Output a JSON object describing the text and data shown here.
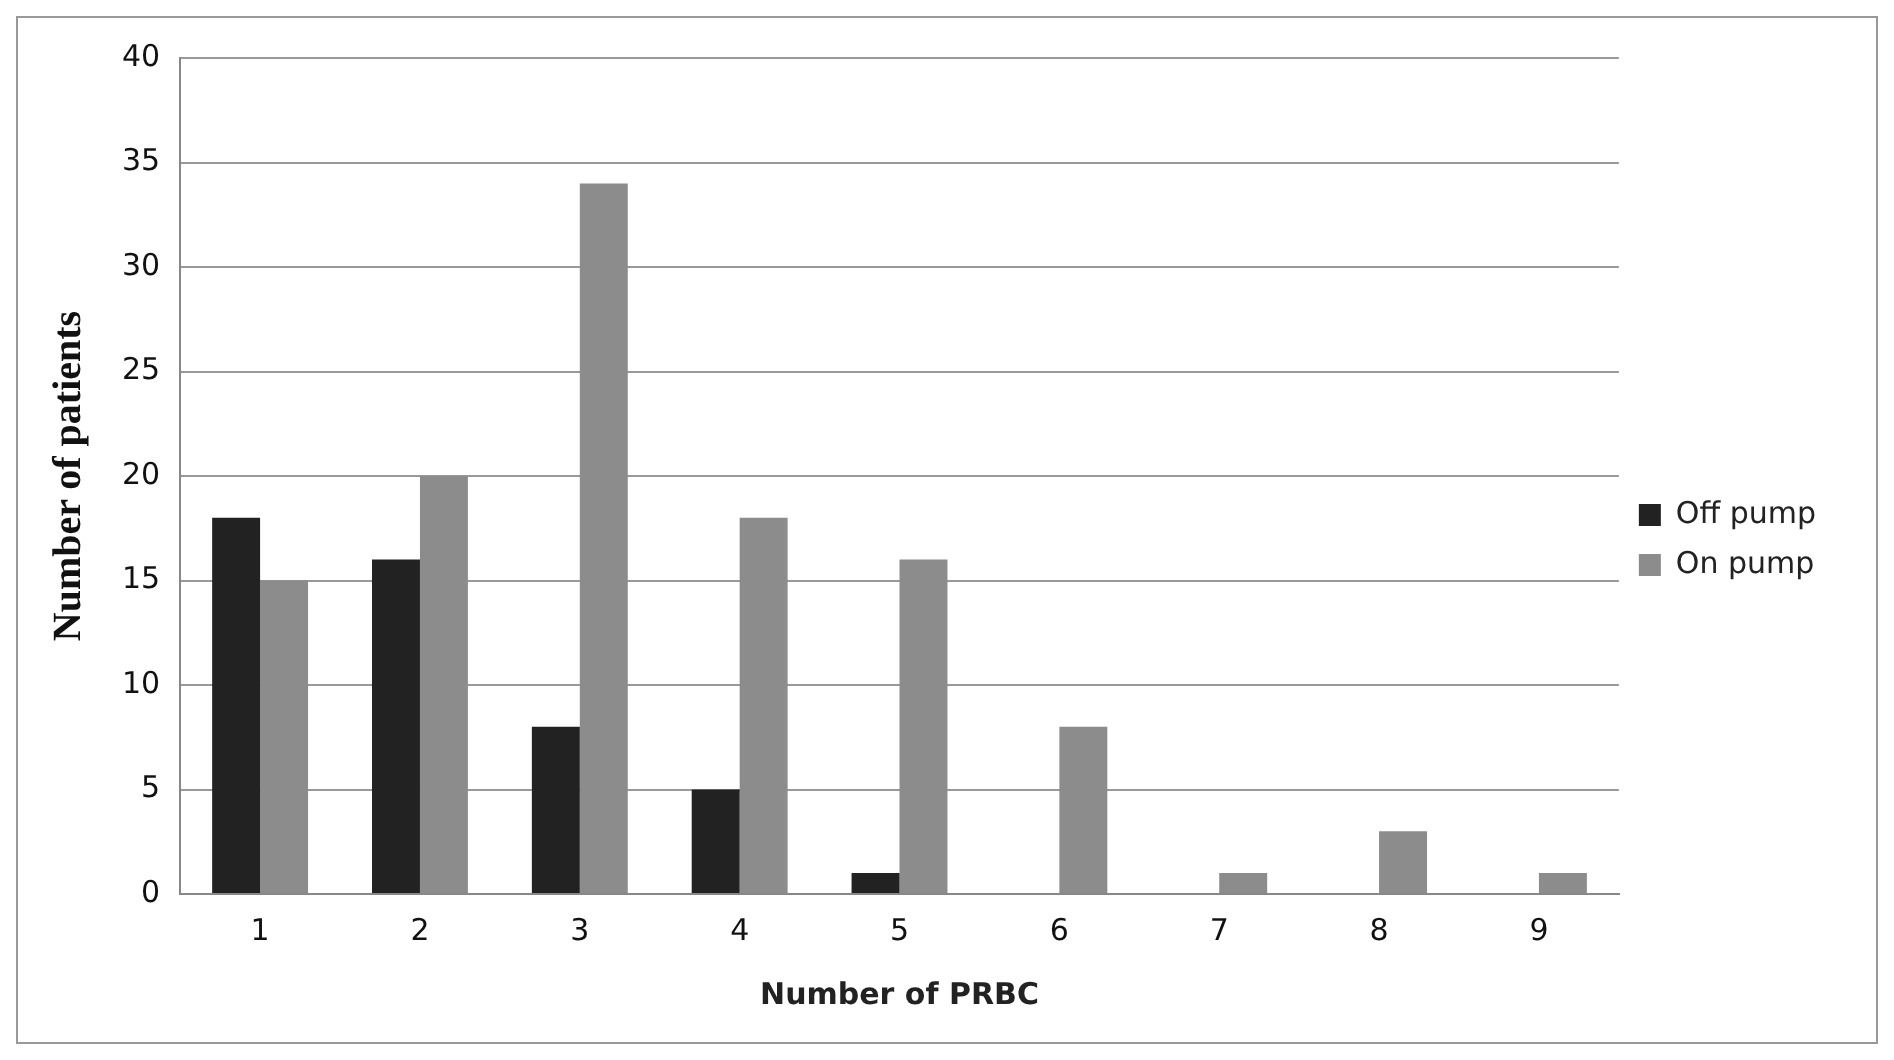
{
  "chart_data": {
    "type": "bar",
    "xlabel": "Number of PRBC",
    "ylabel": "Number of patients",
    "categories": [
      "1",
      "2",
      "3",
      "4",
      "5",
      "6",
      "7",
      "8",
      "9"
    ],
    "series": [
      {
        "name": "Off pump",
        "color": "#222222",
        "values": [
          18,
          16,
          8,
          5,
          1,
          0,
          0,
          0,
          0
        ]
      },
      {
        "name": "On pump",
        "color": "#8c8c8c",
        "values": [
          15,
          20,
          34,
          18,
          16,
          8,
          1,
          3,
          1
        ]
      }
    ],
    "ylim": [
      0,
      40
    ],
    "yticks": [
      0,
      5,
      10,
      15,
      20,
      25,
      30,
      35,
      40
    ],
    "grid": "y",
    "legend": "right"
  }
}
